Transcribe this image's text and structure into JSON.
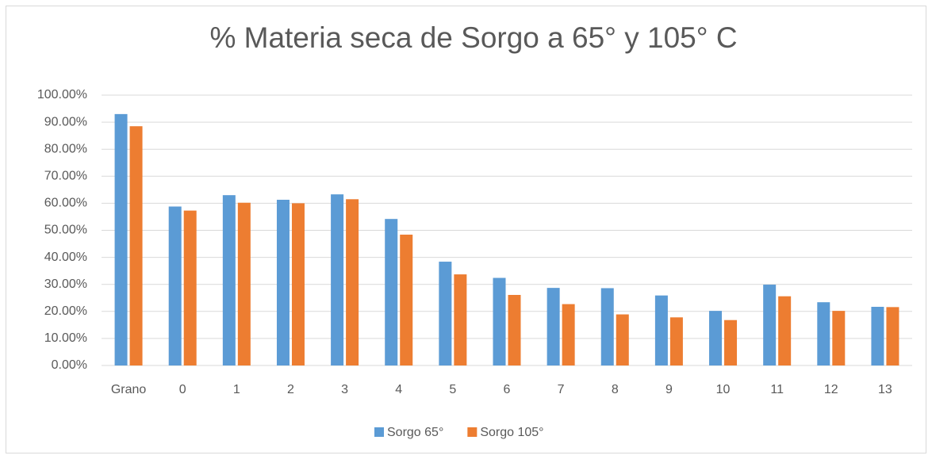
{
  "chart_data": {
    "type": "bar",
    "title": "% Materia seca de Sorgo a 65° y 105° C",
    "categories": [
      "Grano",
      "0",
      "1",
      "2",
      "3",
      "4",
      "5",
      "6",
      "7",
      "8",
      "9",
      "10",
      "11",
      "12",
      "13"
    ],
    "series": [
      {
        "name": "Sorgo 65°",
        "color": "#5b9bd5",
        "values": [
          93,
          58.8,
          63,
          61.3,
          63.3,
          54.2,
          38.4,
          32.4,
          28.7,
          28.6,
          25.9,
          20.2,
          29.9,
          23.4,
          21.7
        ]
      },
      {
        "name": "Sorgo 105°",
        "color": "#ed7d31",
        "values": [
          88.5,
          57.3,
          60.2,
          60,
          61.5,
          48.4,
          33.7,
          26.1,
          22.7,
          18.9,
          17.8,
          16.8,
          25.6,
          20.2,
          21.6
        ]
      }
    ],
    "ylim": [
      0,
      100
    ],
    "yticks": [
      {
        "value": 0,
        "label": "0.00%"
      },
      {
        "value": 10,
        "label": "10.00%"
      },
      {
        "value": 20,
        "label": "20.00%"
      },
      {
        "value": 30,
        "label": "30.00%"
      },
      {
        "value": 40,
        "label": "40.00%"
      },
      {
        "value": 50,
        "label": "50.00%"
      },
      {
        "value": 60,
        "label": "60.00%"
      },
      {
        "value": 70,
        "label": "70.00%"
      },
      {
        "value": 80,
        "label": "80.00%"
      },
      {
        "value": 90,
        "label": "90.00%"
      },
      {
        "value": 100,
        "label": "100.00%"
      }
    ],
    "grid": true,
    "legend": "bottom"
  }
}
